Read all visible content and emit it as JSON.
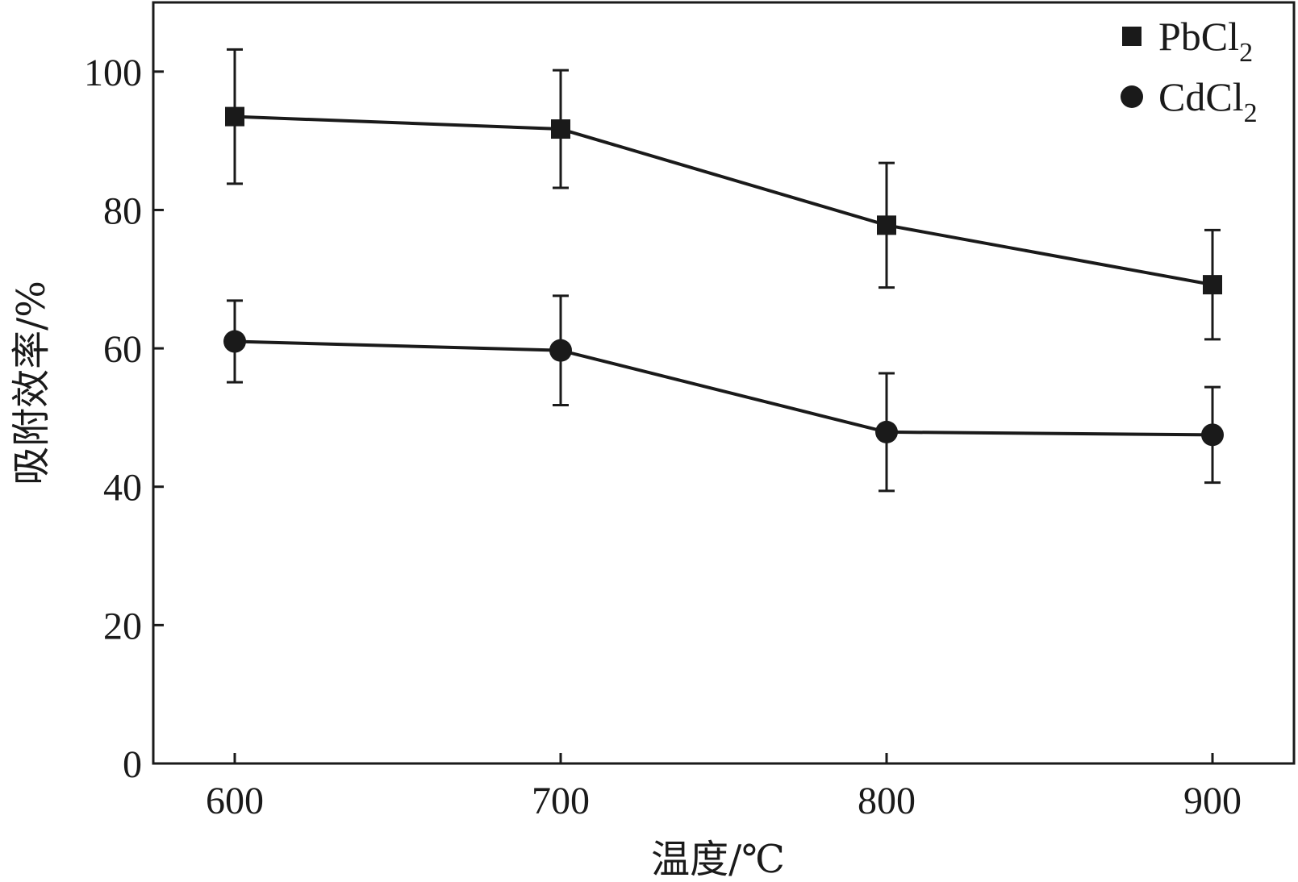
{
  "chart_data": {
    "type": "line",
    "title": "",
    "xlabel": "温度/℃",
    "ylabel": "吸附效率/%",
    "x": [
      600,
      700,
      800,
      900
    ],
    "x_ticks": [
      "600",
      "700",
      "800",
      "900"
    ],
    "xlim": [
      575,
      925
    ],
    "ylim": [
      0,
      110
    ],
    "y_ticks": [
      "0",
      "20",
      "40",
      "60",
      "80",
      "100"
    ],
    "grid": false,
    "legend": "top-right",
    "line_color": "#1a1a1a",
    "series": [
      {
        "name": "PbCl",
        "subscript": "2",
        "marker": "square",
        "values": [
          93.5,
          91.7,
          77.8,
          69.2
        ],
        "error": [
          9.7,
          8.5,
          9.0,
          7.9
        ]
      },
      {
        "name": "CdCl",
        "subscript": "2",
        "marker": "circle",
        "values": [
          61.0,
          59.7,
          47.9,
          47.5
        ],
        "error": [
          5.9,
          7.9,
          8.5,
          6.9
        ]
      }
    ]
  }
}
